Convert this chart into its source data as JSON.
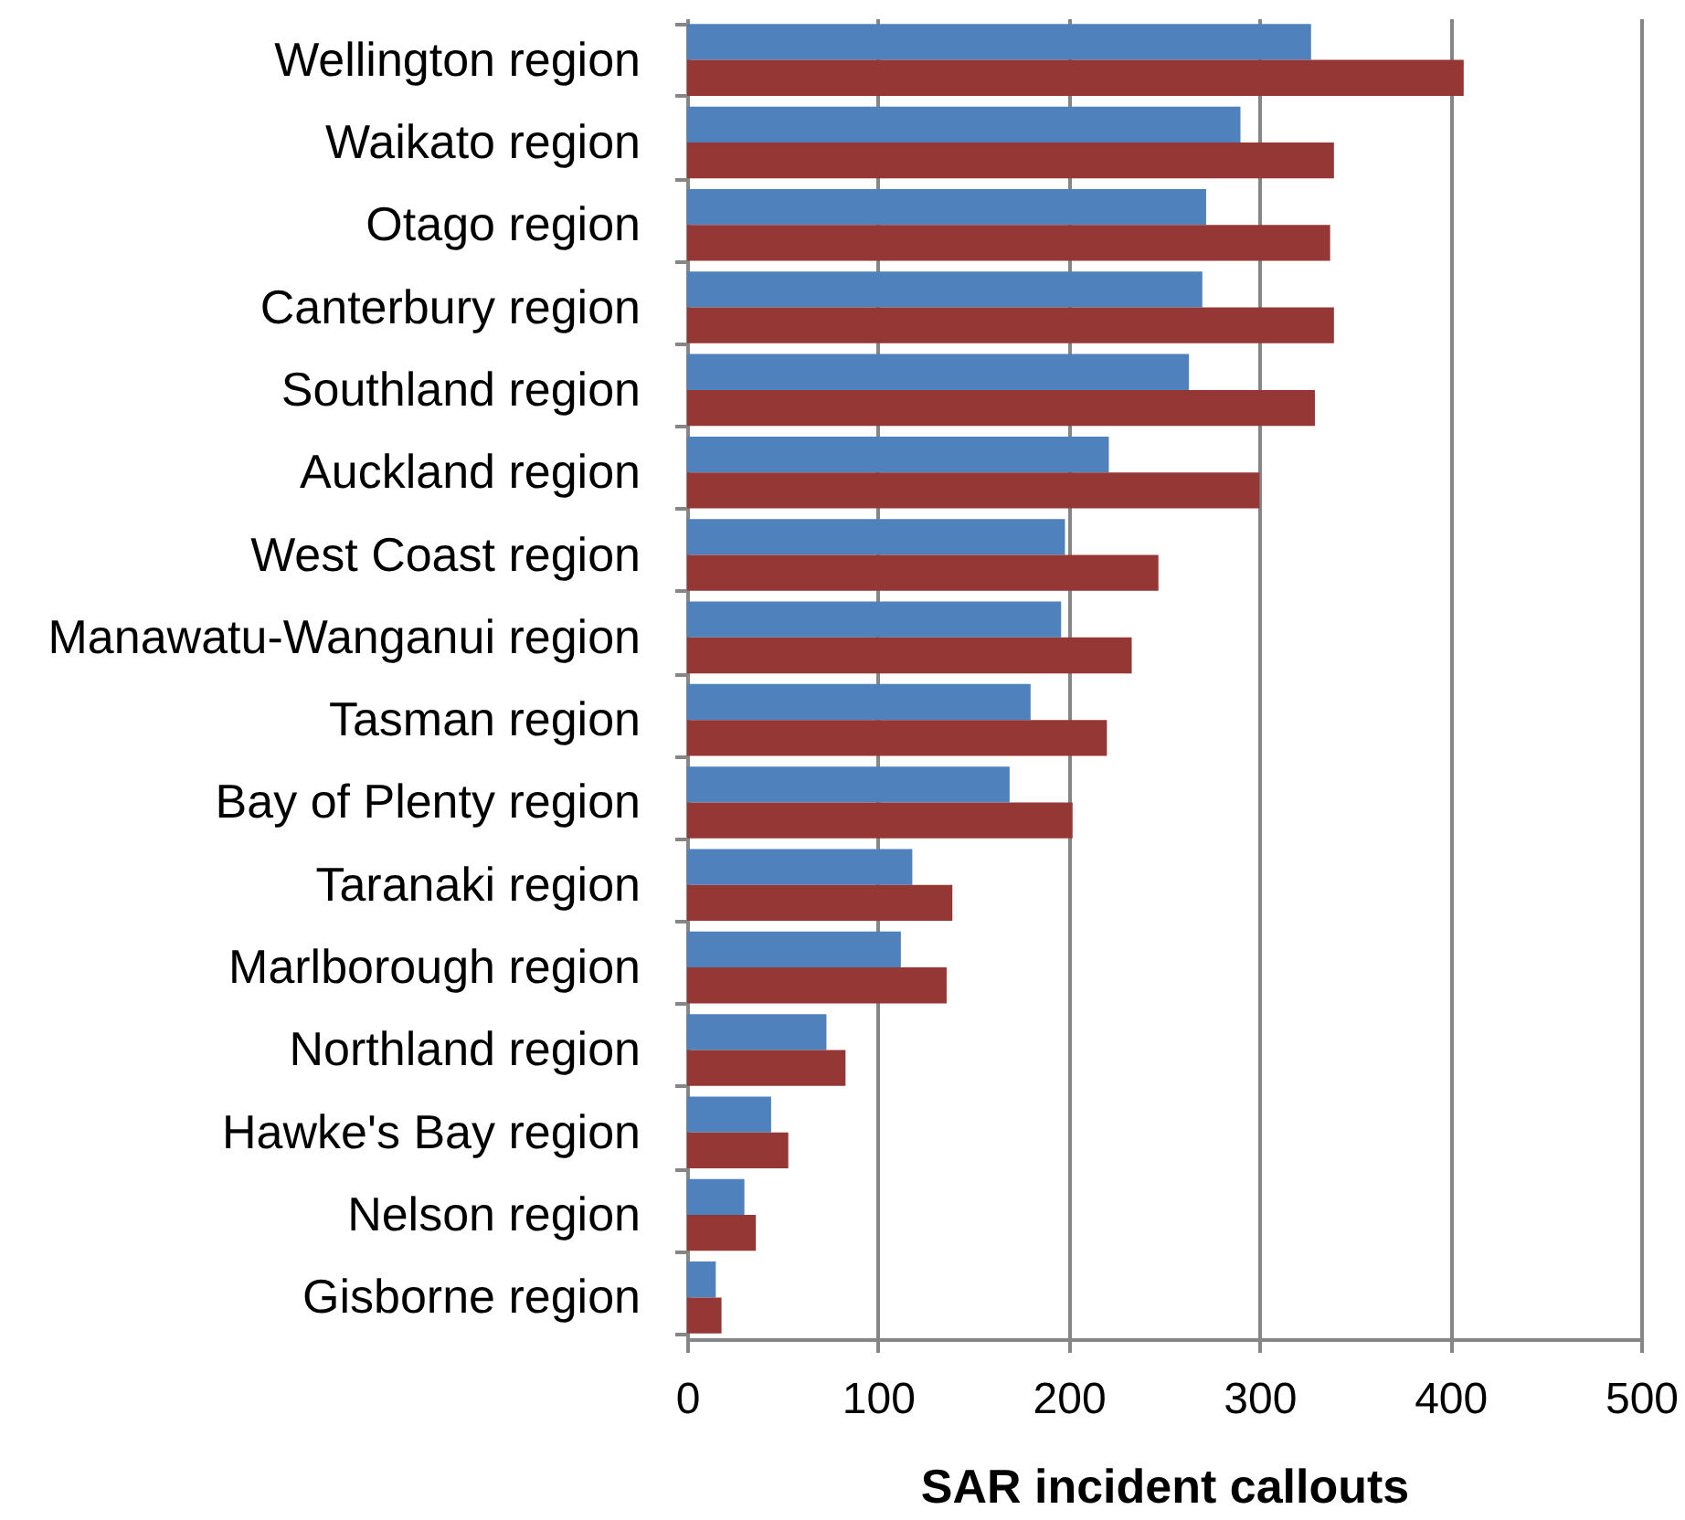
{
  "chart_data": {
    "type": "bar",
    "orientation": "horizontal",
    "xlabel": "SAR incident callouts",
    "categories": [
      "Wellington region",
      "Waikato region",
      "Otago region",
      "Canterbury region",
      "Southland region",
      "Auckland region",
      "West Coast region",
      "Manawatu-Wanganui region",
      "Tasman region",
      "Bay of Plenty region",
      "Taranaki region",
      "Marlborough region",
      "Northland region",
      "Hawke's Bay region",
      "Nelson region",
      "Gisborne region"
    ],
    "series": [
      {
        "color": "#4f81bd",
        "values": [
          327,
          290,
          272,
          270,
          263,
          221,
          198,
          196,
          180,
          169,
          118,
          112,
          73,
          44,
          30,
          15
        ]
      },
      {
        "color": "#953735",
        "values": [
          407,
          339,
          337,
          339,
          329,
          300,
          247,
          233,
          220,
          202,
          139,
          136,
          83,
          53,
          36,
          18
        ]
      }
    ],
    "xlim": [
      0,
      500
    ],
    "xticks": [
      0,
      100,
      200,
      300,
      400,
      500
    ],
    "grid": "x"
  }
}
